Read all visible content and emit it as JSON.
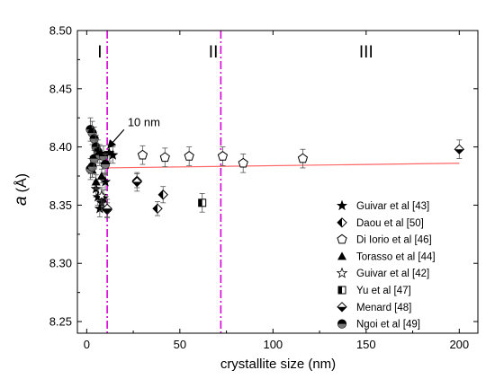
{
  "chart_data": {
    "type": "scatter",
    "xlabel": "crystallite size (nm)",
    "ylabel_symbol": "a",
    "ylabel_unit": "(Å)",
    "xlim": [
      -5,
      210
    ],
    "ylim": [
      8.24,
      8.5
    ],
    "xticks": [
      0,
      50,
      100,
      150,
      200
    ],
    "yticks": [
      "8.25",
      "8.30",
      "8.35",
      "8.40",
      "8.45",
      "8.50"
    ],
    "regions": [
      "I",
      "II",
      "III"
    ],
    "region_label_x": [
      7,
      68,
      150
    ],
    "region_label_y": 8.477,
    "boundaries": [
      11,
      72
    ],
    "annotation": {
      "text": "10 nm",
      "x": 21,
      "y": 8.418,
      "arrow_to": [
        10,
        8.397
      ]
    },
    "fit_line": {
      "x": [
        10,
        200
      ],
      "y": [
        8.382,
        8.386
      ],
      "color": "#ff6666"
    },
    "boundary_color": "#d400d4",
    "legend_position": "right",
    "series": [
      {
        "name": "Guivar et al [43]",
        "marker": "star-filled",
        "points": [
          [
            5,
            8.364
          ],
          [
            6,
            8.357
          ],
          [
            7,
            8.347
          ],
          [
            8,
            8.352
          ],
          [
            9,
            8.356
          ],
          [
            10,
            8.37
          ],
          [
            12,
            8.395
          ],
          [
            14,
            8.393
          ]
        ],
        "err": [
          0.007,
          0.007,
          0.007,
          0.007,
          0.007,
          0.007,
          0.007,
          0.007
        ]
      },
      {
        "name": "Daou et al [50]",
        "marker": "half-diamond",
        "points": [
          [
            11,
            8.346
          ],
          [
            27,
            8.371
          ],
          [
            38,
            8.347
          ],
          [
            41,
            8.359
          ]
        ],
        "err": [
          0.006,
          0.006,
          0.006,
          0.007
        ]
      },
      {
        "name": "Di Iorio et al [46]",
        "marker": "pentagon-open",
        "points": [
          [
            30,
            8.393
          ],
          [
            42,
            8.391
          ],
          [
            55,
            8.392
          ],
          [
            73,
            8.392
          ],
          [
            84,
            8.386
          ],
          [
            116,
            8.39
          ]
        ],
        "err": [
          0.008,
          0.008,
          0.008,
          0.008,
          0.008,
          0.008
        ]
      },
      {
        "name": "Torasso et al [44]",
        "marker": "triangle-filled",
        "points": [
          [
            3,
            8.38
          ],
          [
            5,
            8.37
          ],
          [
            8,
            8.375
          ]
        ],
        "err": [
          0.006,
          0.006,
          0.006
        ]
      },
      {
        "name": "Guivar et al [42]",
        "marker": "star-open",
        "points": [
          [
            8,
            8.358
          ],
          [
            10,
            8.385
          ]
        ],
        "err": [
          0.007,
          0.007
        ]
      },
      {
        "name": "Yu et al [47]",
        "marker": "half-square",
        "points": [
          [
            62,
            8.352
          ]
        ],
        "err": [
          0.008
        ]
      },
      {
        "name": "Menard [48]",
        "marker": "diamond-half",
        "points": [
          [
            11,
            8.347
          ],
          [
            27,
            8.37
          ],
          [
            200,
            8.398
          ]
        ],
        "err": [
          0.008,
          0.008,
          0.008
        ]
      },
      {
        "name": "Ngoi et al [49]",
        "marker": "circle-half",
        "points": [
          [
            2,
            8.415
          ],
          [
            3,
            8.412
          ],
          [
            4,
            8.407
          ],
          [
            5,
            8.4
          ],
          [
            6,
            8.396
          ],
          [
            2,
            8.381
          ],
          [
            3,
            8.383
          ],
          [
            4,
            8.39
          ],
          [
            7,
            8.393
          ],
          [
            9,
            8.392
          ],
          [
            10,
            8.385
          ]
        ],
        "err": [
          0.01,
          0.01,
          0.01,
          0.01,
          0.01,
          0.009,
          0.009,
          0.009,
          0.009,
          0.009,
          0.009
        ]
      }
    ]
  }
}
